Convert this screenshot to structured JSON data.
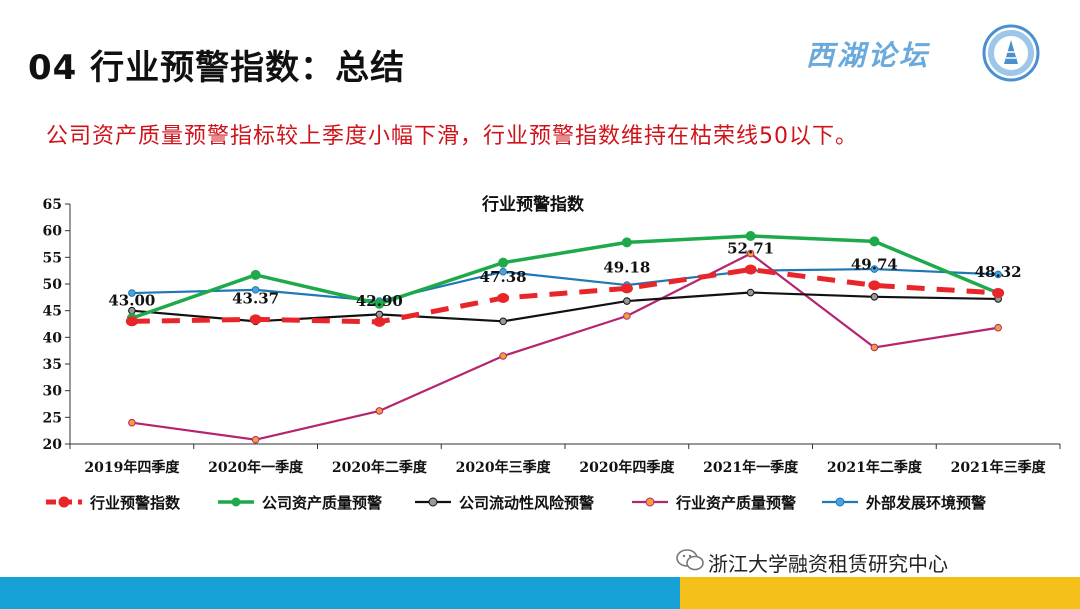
{
  "header": {
    "title": "04 行业预警指数：总结",
    "brand": "西湖论坛",
    "subtitle": "公司资产质量预警指标较上季度小幅下滑，行业预警指数维持在枯荣线50以下。"
  },
  "footer": {
    "source": "浙江大学融资租赁研究中心"
  },
  "colors": {
    "accent_red": "#d0131b",
    "footer_blue": "#15a0d6",
    "footer_yellow": "#f6c01b"
  },
  "chart_data": {
    "type": "line",
    "title": "行业预警指数",
    "xlabel": "",
    "ylabel": "",
    "ylim": [
      20,
      65
    ],
    "yticks": [
      20,
      25,
      30,
      35,
      40,
      45,
      50,
      55,
      60,
      65
    ],
    "grid": false,
    "legend_position": "bottom",
    "categories": [
      "2019年四季度",
      "2020年一季度",
      "2020年二季度",
      "2020年三季度",
      "2020年四季度",
      "2021年一季度",
      "2021年二季度",
      "2021年三季度"
    ],
    "series": [
      {
        "name": "行业预警指数",
        "color": "#e8262a",
        "style": "dashed",
        "values": [
          43.0,
          43.37,
          42.9,
          47.38,
          49.18,
          52.71,
          49.74,
          48.32
        ],
        "labels": [
          "43.00",
          "43.37",
          "42.90",
          "47.38",
          "49.18",
          "52.71",
          "49.74",
          "48.32"
        ]
      },
      {
        "name": "公司资产质量预警",
        "color": "#1eaa4a",
        "style": "solid",
        "values": [
          43.6,
          51.7,
          46.3,
          54.0,
          57.8,
          59.0,
          58.0,
          48.3
        ]
      },
      {
        "name": "公司流动性风险预警",
        "color": "#111111",
        "style": "solid",
        "values": [
          45.0,
          43.0,
          44.3,
          43.0,
          46.8,
          48.4,
          47.6,
          47.2
        ]
      },
      {
        "name": "行业资产质量预警",
        "color": "#b5246f",
        "style": "solid",
        "values": [
          24.0,
          20.8,
          26.2,
          36.5,
          44.0,
          55.7,
          38.1,
          41.8
        ]
      },
      {
        "name": "外部发展环境预警",
        "color": "#1f77b4",
        "style": "solid",
        "values": [
          48.3,
          48.9,
          46.8,
          52.3,
          49.8,
          52.5,
          52.8,
          51.8
        ]
      }
    ]
  }
}
